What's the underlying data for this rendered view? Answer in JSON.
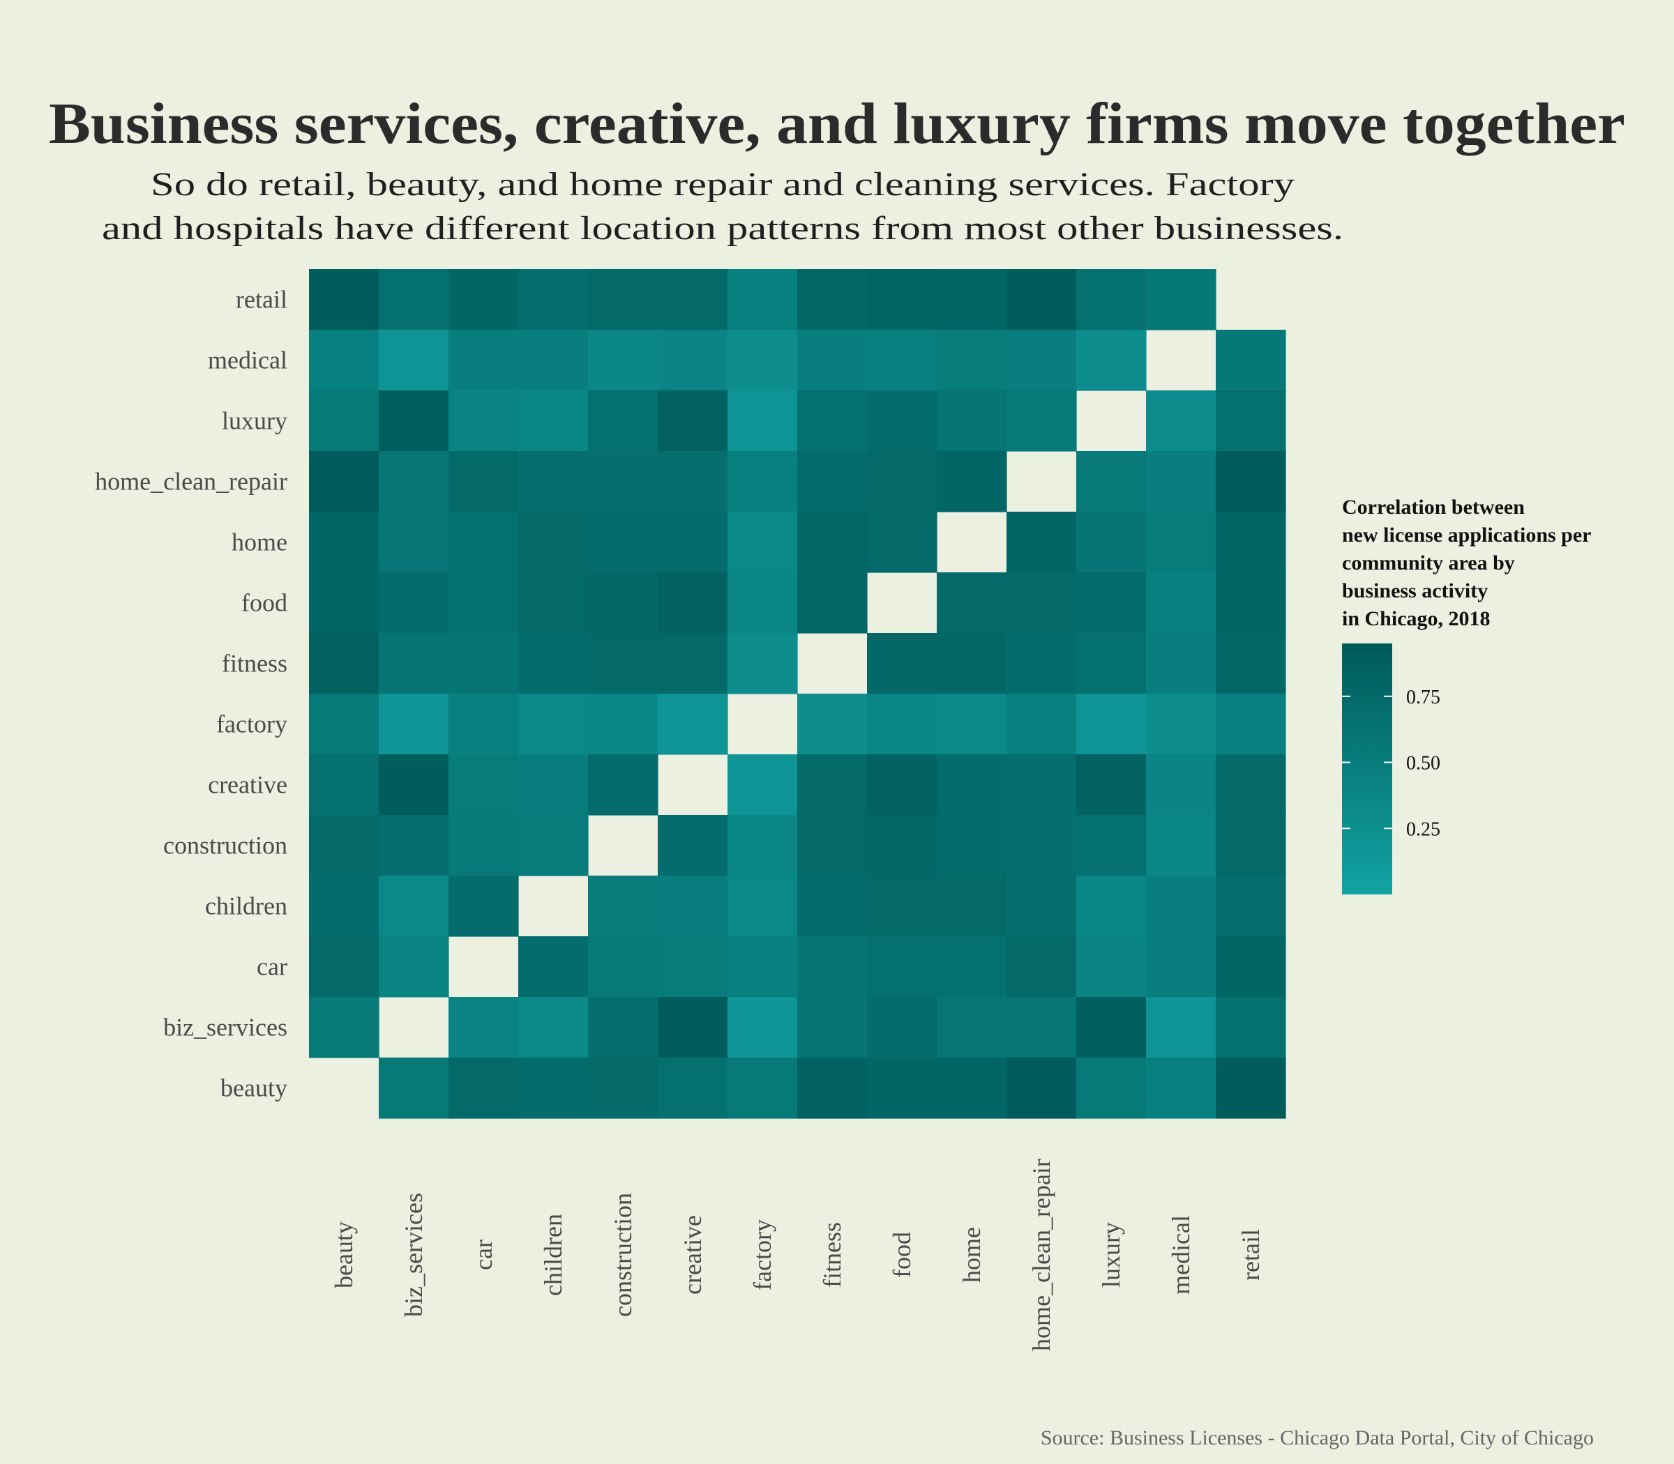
{
  "chart_data": {
    "type": "heatmap",
    "title": "Business services, creative, and luxury firms move together",
    "subtitle": [
      "So do retail, beauty, and home repair and cleaning services. Factory",
      "and hospitals have different location patterns from most other businesses."
    ],
    "categories": [
      "beauty",
      "biz_services",
      "car",
      "children",
      "construction",
      "creative",
      "factory",
      "fitness",
      "food",
      "home",
      "home_clean_repair",
      "luxury",
      "medical",
      "retail"
    ],
    "y_order_top_to_bottom": [
      "retail",
      "medical",
      "luxury",
      "home_clean_repair",
      "home",
      "food",
      "fitness",
      "factory",
      "creative",
      "construction",
      "children",
      "car",
      "biz_services",
      "beauty"
    ],
    "matrix": [
      [
        null,
        0.55,
        0.75,
        0.72,
        0.74,
        0.66,
        0.55,
        0.85,
        0.8,
        0.79,
        0.93,
        0.55,
        0.45,
        0.92
      ],
      [
        0.55,
        null,
        0.42,
        0.35,
        0.68,
        0.92,
        0.18,
        0.6,
        0.72,
        0.58,
        0.58,
        0.9,
        0.2,
        0.66
      ],
      [
        0.75,
        0.42,
        null,
        0.72,
        0.55,
        0.52,
        0.45,
        0.6,
        0.66,
        0.66,
        0.75,
        0.42,
        0.48,
        0.8
      ],
      [
        0.72,
        0.35,
        0.72,
        null,
        0.52,
        0.5,
        0.35,
        0.72,
        0.75,
        0.75,
        0.68,
        0.38,
        0.48,
        0.7
      ],
      [
        0.74,
        0.68,
        0.55,
        0.52,
        null,
        0.72,
        0.38,
        0.75,
        0.78,
        0.72,
        0.68,
        0.66,
        0.36,
        0.76
      ],
      [
        0.66,
        0.92,
        0.52,
        0.5,
        0.72,
        null,
        0.2,
        0.75,
        0.85,
        0.72,
        0.68,
        0.85,
        0.4,
        0.76
      ],
      [
        0.55,
        0.18,
        0.45,
        0.35,
        0.38,
        0.2,
        null,
        0.28,
        0.38,
        0.35,
        0.45,
        0.2,
        0.28,
        0.45
      ],
      [
        0.85,
        0.6,
        0.6,
        0.72,
        0.75,
        0.75,
        0.28,
        null,
        0.78,
        0.78,
        0.72,
        0.66,
        0.48,
        0.78
      ],
      [
        0.8,
        0.72,
        0.66,
        0.75,
        0.78,
        0.85,
        0.38,
        0.78,
        null,
        0.76,
        0.76,
        0.72,
        0.46,
        0.83
      ],
      [
        0.79,
        0.58,
        0.66,
        0.75,
        0.72,
        0.72,
        0.35,
        0.78,
        0.76,
        null,
        0.8,
        0.6,
        0.52,
        0.8
      ],
      [
        0.93,
        0.58,
        0.75,
        0.68,
        0.68,
        0.68,
        0.45,
        0.72,
        0.76,
        0.8,
        null,
        0.55,
        0.48,
        0.92
      ],
      [
        0.55,
        0.9,
        0.42,
        0.38,
        0.66,
        0.85,
        0.2,
        0.66,
        0.72,
        0.6,
        0.55,
        null,
        0.3,
        0.66
      ],
      [
        0.45,
        0.2,
        0.48,
        0.48,
        0.36,
        0.4,
        0.28,
        0.48,
        0.46,
        0.52,
        0.48,
        0.3,
        null,
        0.56
      ],
      [
        0.92,
        0.66,
        0.8,
        0.7,
        0.76,
        0.76,
        0.45,
        0.78,
        0.83,
        0.8,
        0.92,
        0.66,
        0.56,
        null
      ]
    ],
    "legend": {
      "title": [
        "Correlation between",
        "new license applications per",
        "community area by",
        "business activity",
        "in Chicago, 2018"
      ],
      "ticks": [
        0.25,
        0.5,
        0.75
      ],
      "tick_labels": [
        "0.25",
        "0.50",
        "0.75"
      ],
      "range": [
        0.0,
        0.95
      ],
      "color_low": "#12a3a3",
      "color_high": "#005a5a",
      "placement": "right"
    },
    "caption": "Source: Business Licenses - Chicago Data Portal, City of Chicago",
    "colors": {
      "background": "#ecf0e0",
      "diagonal": "#ecf0e0"
    }
  }
}
